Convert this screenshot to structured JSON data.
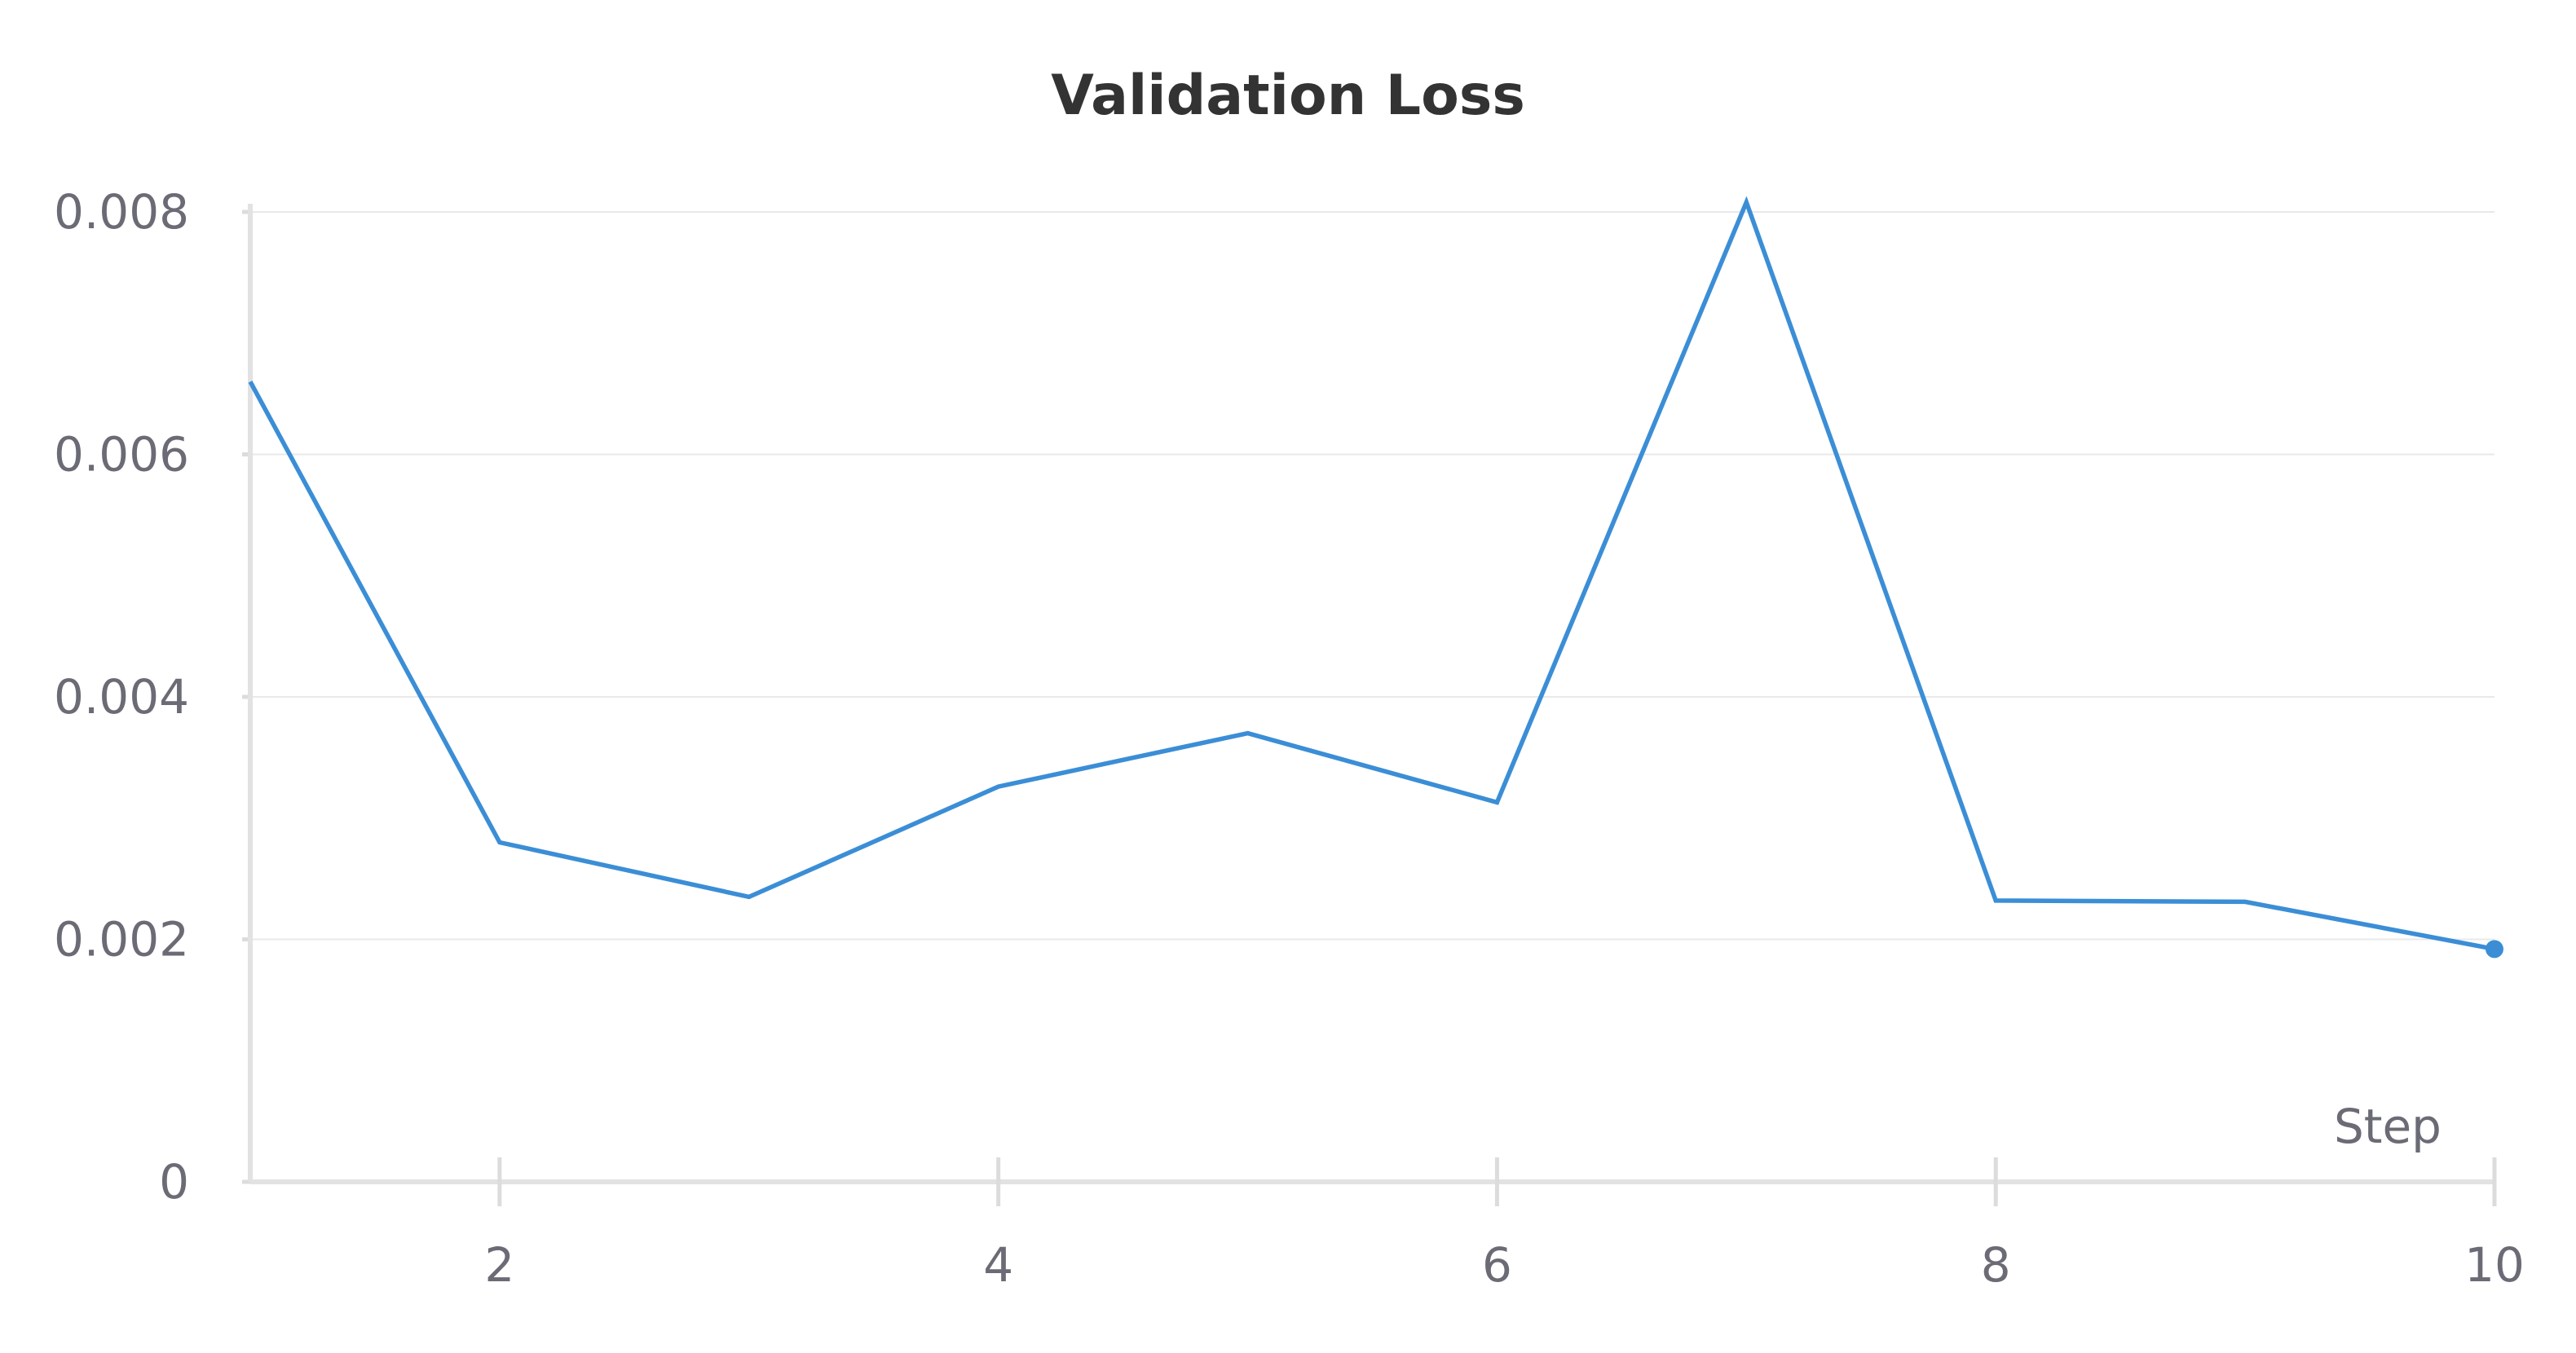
{
  "chart_data": {
    "type": "line",
    "title": "Validation Loss",
    "xlabel": "Step",
    "ylabel": "",
    "xlim": [
      1,
      10
    ],
    "ylim": [
      0,
      0.008
    ],
    "x_ticks": [
      "2",
      "4",
      "6",
      "8",
      "10"
    ],
    "y_ticks": [
      "0",
      "0.002",
      "0.004",
      "0.006",
      "0.008"
    ],
    "grid": true,
    "series": [
      {
        "x": [
          1,
          2,
          3,
          4,
          5,
          6,
          7,
          8,
          9,
          10
        ],
        "values": [
          0.0066,
          0.0028,
          0.00235,
          0.00326,
          0.0037,
          0.00313,
          0.00808,
          0.00232,
          0.00231,
          0.00192
        ],
        "color": "#3b8ed6"
      }
    ]
  }
}
